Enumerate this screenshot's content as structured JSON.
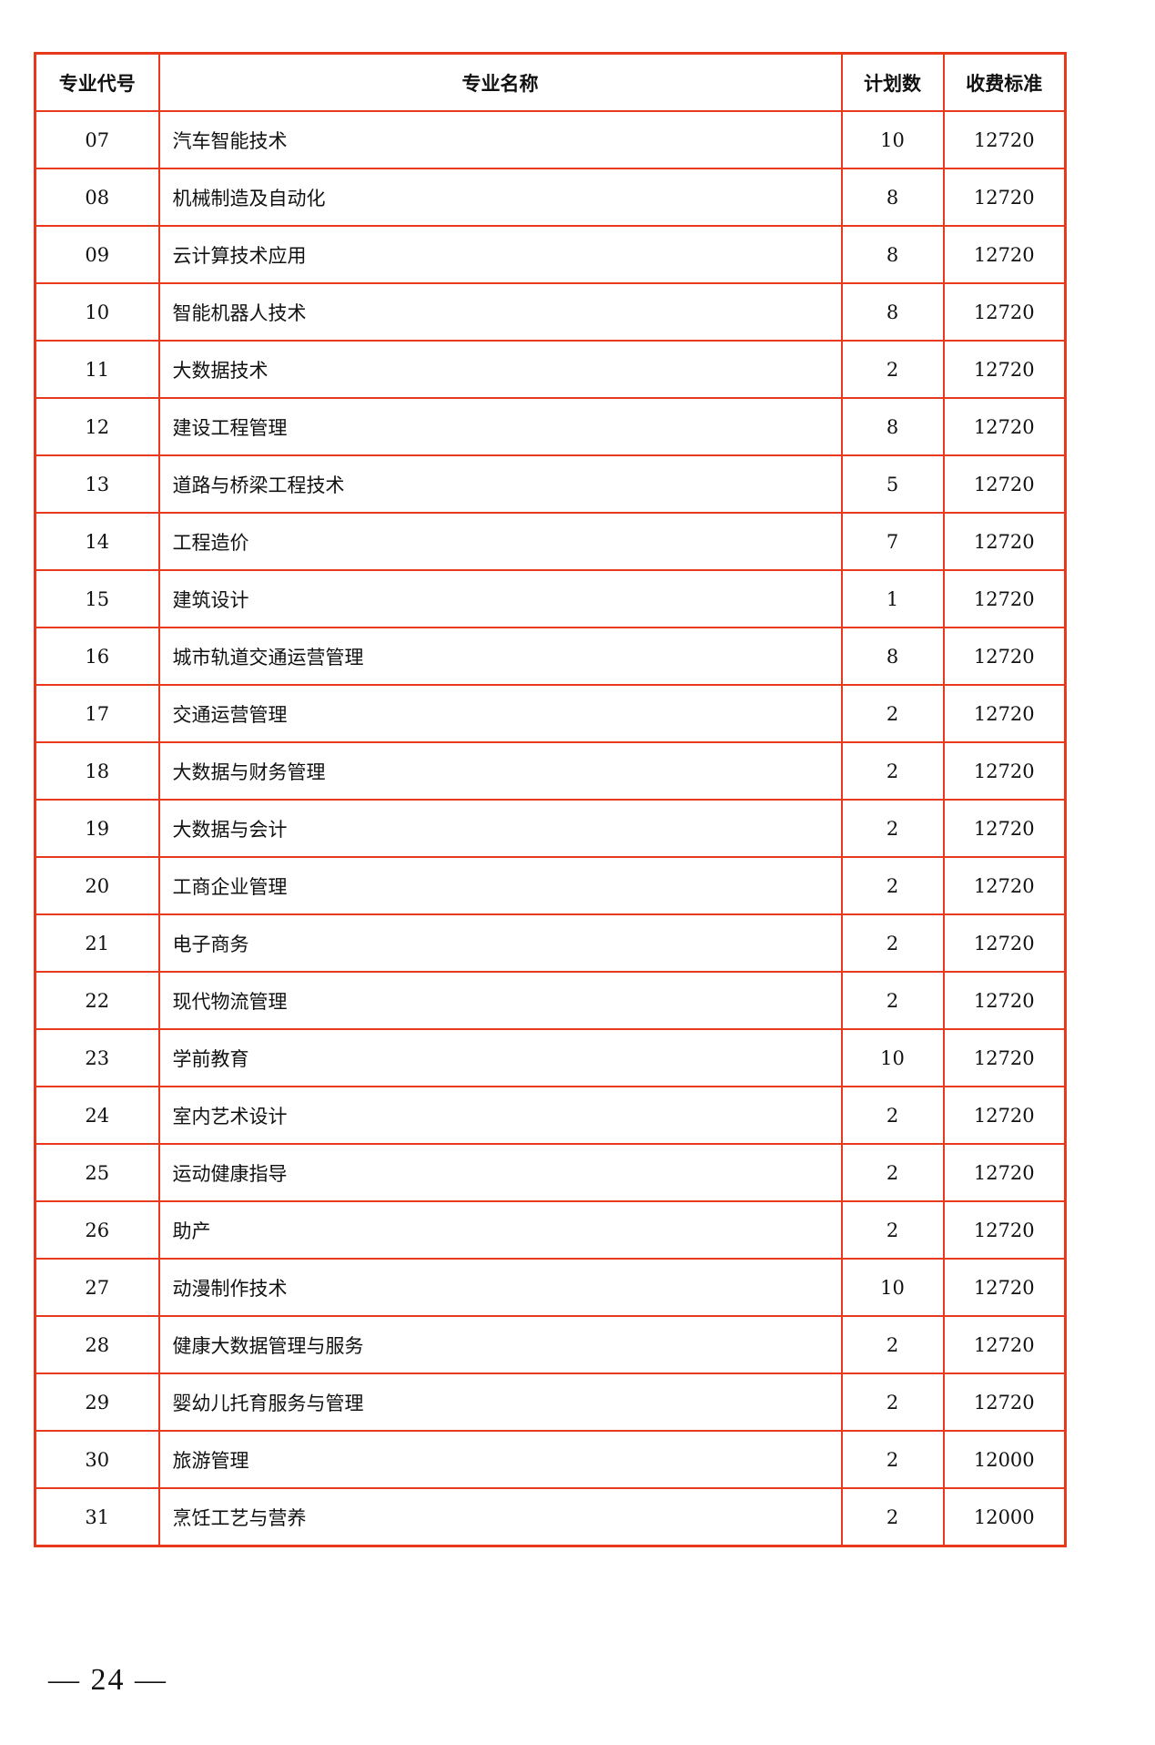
{
  "table": {
    "headers": [
      "专业代号",
      "专业名称",
      "计划数",
      "收费标准"
    ],
    "rows": [
      [
        "07",
        "汽车智能技术",
        "10",
        "12720"
      ],
      [
        "08",
        "机械制造及自动化",
        "8",
        "12720"
      ],
      [
        "09",
        "云计算技术应用",
        "8",
        "12720"
      ],
      [
        "10",
        "智能机器人技术",
        "8",
        "12720"
      ],
      [
        "11",
        "大数据技术",
        "2",
        "12720"
      ],
      [
        "12",
        "建设工程管理",
        "8",
        "12720"
      ],
      [
        "13",
        "道路与桥梁工程技术",
        "5",
        "12720"
      ],
      [
        "14",
        "工程造价",
        "7",
        "12720"
      ],
      [
        "15",
        "建筑设计",
        "1",
        "12720"
      ],
      [
        "16",
        "城市轨道交通运营管理",
        "8",
        "12720"
      ],
      [
        "17",
        "交通运营管理",
        "2",
        "12720"
      ],
      [
        "18",
        "大数据与财务管理",
        "2",
        "12720"
      ],
      [
        "19",
        "大数据与会计",
        "2",
        "12720"
      ],
      [
        "20",
        "工商企业管理",
        "2",
        "12720"
      ],
      [
        "21",
        "电子商务",
        "2",
        "12720"
      ],
      [
        "22",
        "现代物流管理",
        "2",
        "12720"
      ],
      [
        "23",
        "学前教育",
        "10",
        "12720"
      ],
      [
        "24",
        "室内艺术设计",
        "2",
        "12720"
      ],
      [
        "25",
        "运动健康指导",
        "2",
        "12720"
      ],
      [
        "26",
        "助产",
        "2",
        "12720"
      ],
      [
        "27",
        "动漫制作技术",
        "10",
        "12720"
      ],
      [
        "28",
        "健康大数据管理与服务",
        "2",
        "12720"
      ],
      [
        "29",
        "婴幼儿托育服务与管理",
        "2",
        "12720"
      ],
      [
        "30",
        "旅游管理",
        "2",
        "12000"
      ],
      [
        "31",
        "烹饪工艺与营养",
        "2",
        "12000"
      ]
    ]
  },
  "page_number": "— 24 —",
  "colors": {
    "border": "#e8391d"
  }
}
